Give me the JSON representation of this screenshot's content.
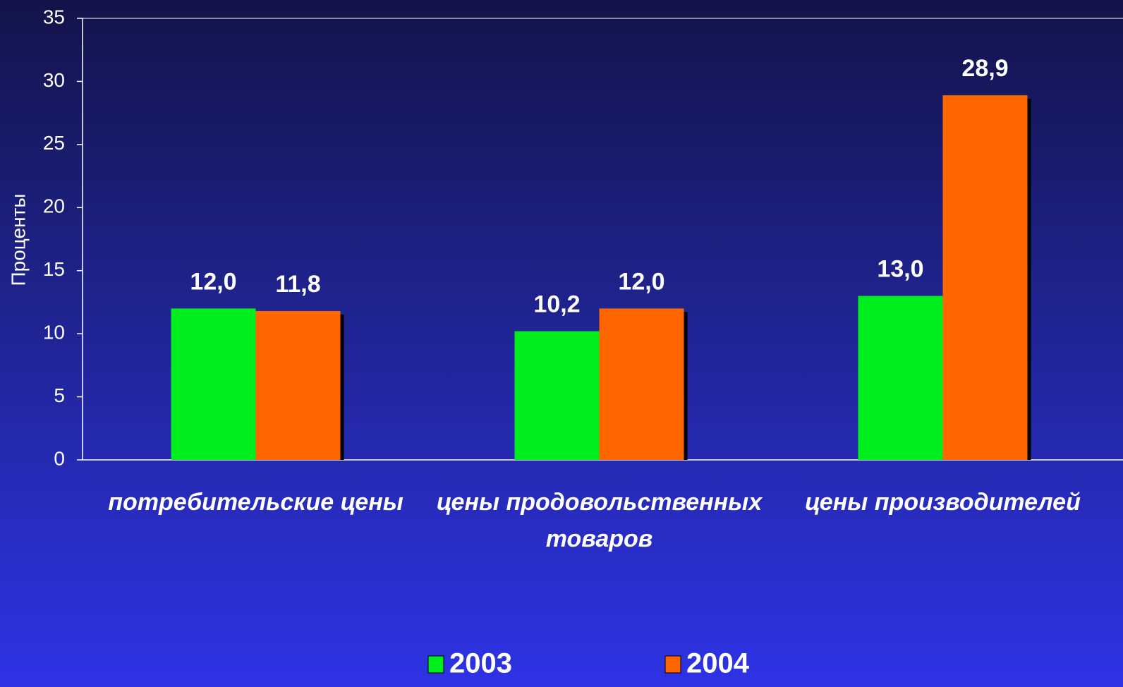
{
  "chart_data": {
    "type": "bar",
    "y_label": "Проценты",
    "categories": [
      "потребительские цены",
      "цены продовольственных товаров",
      "цены производителей"
    ],
    "series": [
      {
        "name": "2003",
        "color": "#00ee1e",
        "values": [
          12.0,
          10.2,
          13.0
        ],
        "value_labels": [
          "12,0",
          "10,2",
          "13,0"
        ]
      },
      {
        "name": "2004",
        "color": "#ff6600",
        "values": [
          11.8,
          12.0,
          28.9
        ],
        "value_labels": [
          "11,8",
          "12,0",
          "28,9"
        ]
      }
    ],
    "ylim": [
      0,
      35
    ],
    "yticks": [
      0,
      5,
      10,
      15,
      20,
      25,
      30,
      35
    ],
    "grid": false,
    "legend": "bottom"
  }
}
